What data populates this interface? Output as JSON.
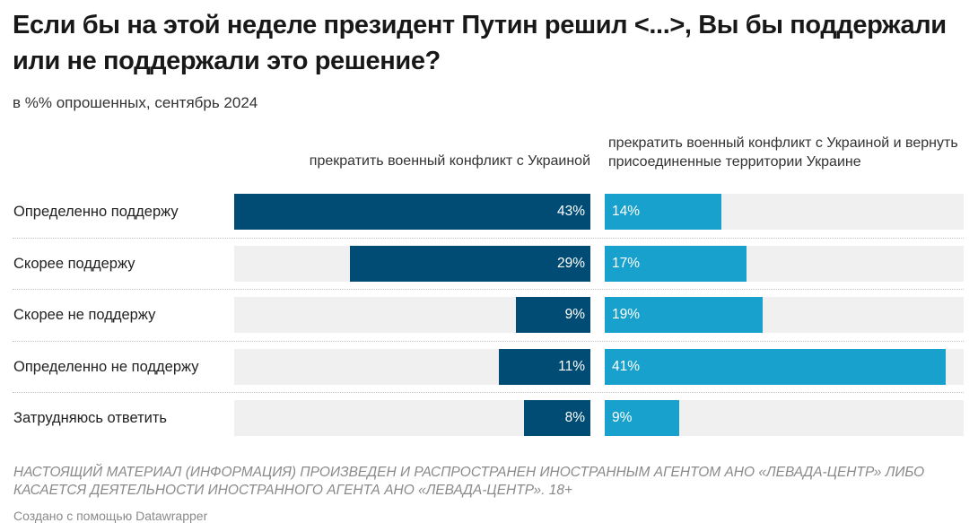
{
  "chart_data": {
    "type": "bar",
    "title": "Если бы на этой неделе президент Путин решил <...>, Вы бы поддержали или не поддержали это решение?",
    "subtitle": "в %% опрошенных, сентябрь 2024",
    "categories": [
      "Определенно поддержу",
      "Скорее поддержу",
      "Скорее не поддержу",
      "Определенно не поддержу",
      "Затрудняюсь ответить"
    ],
    "series": [
      {
        "name": "прекратить военный конфликт с Украиной",
        "values": [
          43,
          29,
          9,
          11,
          8
        ],
        "color": "#004c74"
      },
      {
        "name": "прекратить военный конфликт с Украиной и вернуть присоединенные территории Украине",
        "values": [
          14,
          17,
          19,
          41,
          9
        ],
        "color": "#18a1cd"
      }
    ],
    "value_suffix": "%",
    "xlim": [
      0,
      43
    ],
    "orientation": "horizontal",
    "grid": false,
    "legend": "column-headers"
  },
  "footer": {
    "notice": "НАСТОЯЩИЙ МАТЕРИАЛ (ИНФОРМАЦИЯ) ПРОИЗВЕДЕН И РАСПРОСТРАНЕН ИНОСТРАННЫМ АГЕНТОМ АНО «ЛЕВАДА-ЦЕНТР» ЛИБО КАСАЕТСЯ ДЕЯТЕЛЬНОСТИ ИНОСТРАННОГО АГЕНТА АНО «ЛЕВАДА-ЦЕНТР». 18+",
    "credit": "Создано с помощью Datawrapper"
  }
}
